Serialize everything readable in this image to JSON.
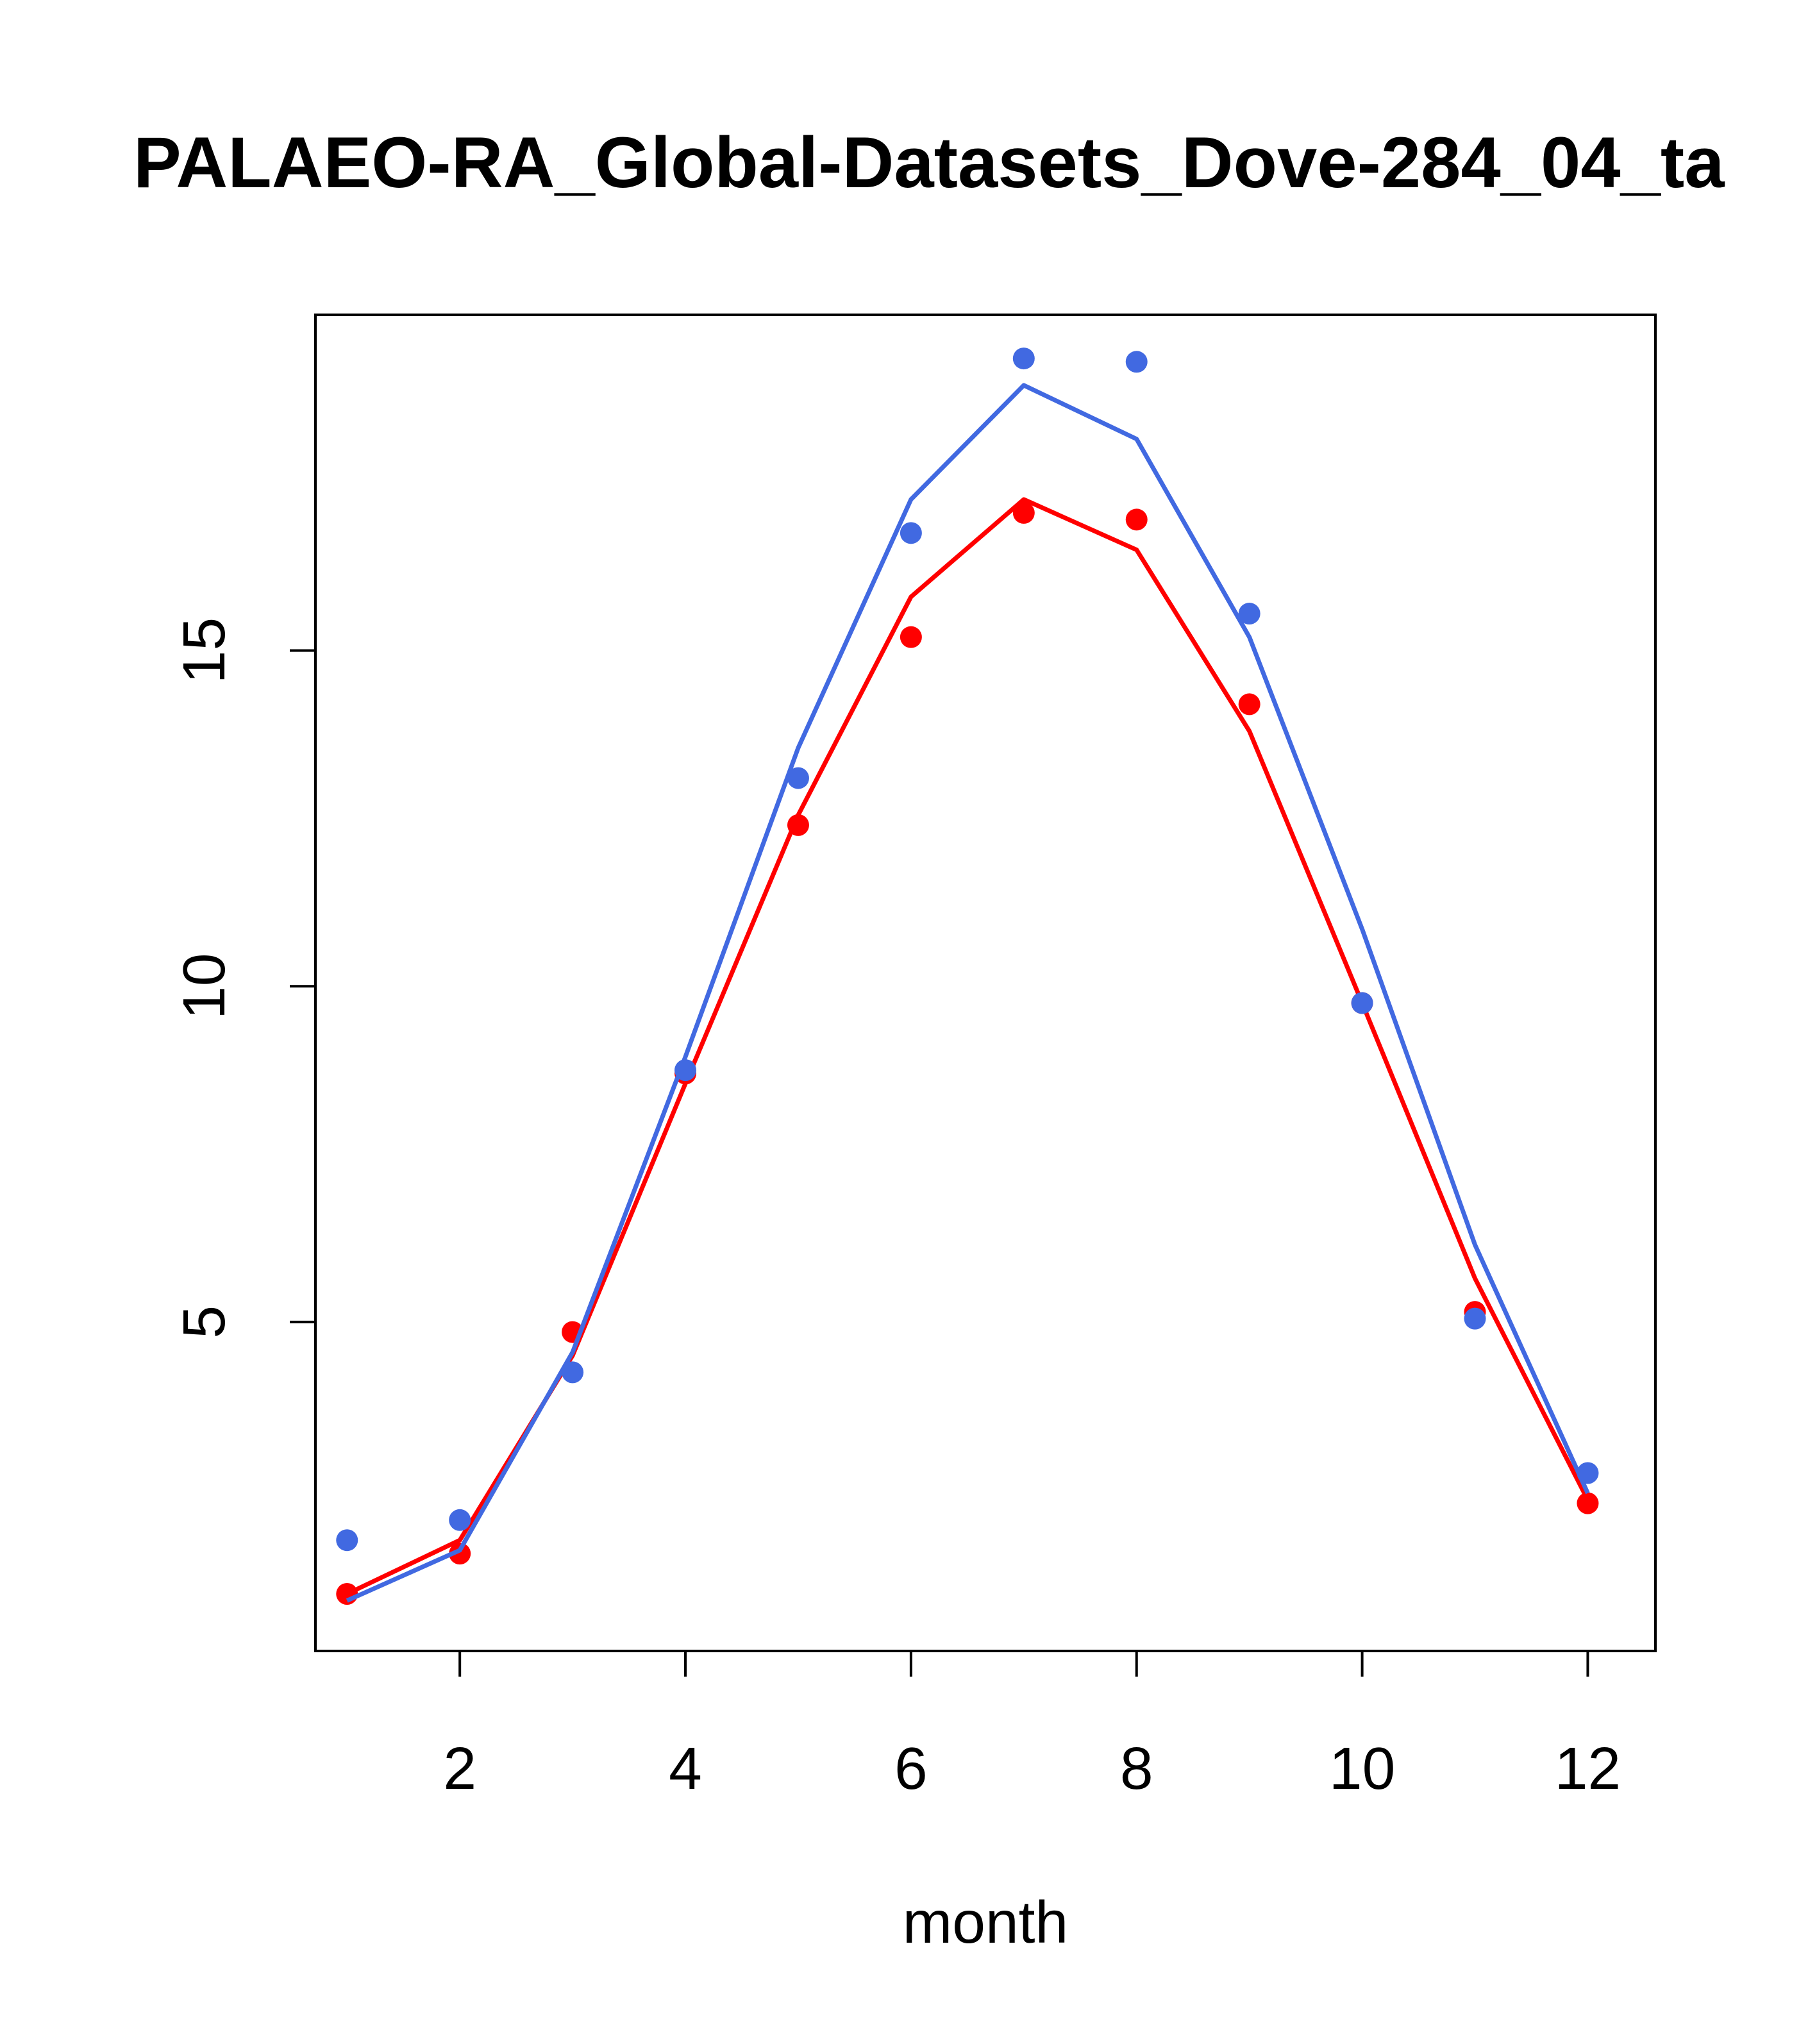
{
  "chart_data": {
    "type": "line",
    "title": "PALAEO-RA_Global-Datasets_Dove-284_04_ta",
    "xlabel": "month",
    "ylabel": "",
    "x": [
      1,
      2,
      3,
      4,
      5,
      6,
      7,
      8,
      9,
      10,
      11,
      12
    ],
    "xlim": [
      0.72,
      12.6
    ],
    "ylim": [
      0.1,
      20.0
    ],
    "xticks": [
      2,
      4,
      6,
      8,
      10,
      12
    ],
    "yticks": [
      5,
      10,
      15
    ],
    "xtick_labels": [
      "2",
      "4",
      "6",
      "8",
      "10",
      "12"
    ],
    "ytick_labels": [
      "5",
      "10",
      "15"
    ],
    "grid": false,
    "colors": {
      "red_series": "#ff0000",
      "blue_series": "#4169e1",
      "axis": "#000000"
    },
    "series": [
      {
        "color": "#ff0000",
        "line": [
          0.95,
          1.75,
          4.5,
          8.55,
          12.55,
          15.8,
          17.25,
          16.5,
          13.8,
          9.75,
          5.65,
          2.35
        ],
        "points": [
          0.95,
          1.55,
          4.85,
          8.7,
          12.4,
          15.2,
          17.05,
          16.95,
          14.2,
          9.75,
          5.15,
          2.3
        ]
      },
      {
        "color": "#4169e1",
        "line": [
          0.85,
          1.6,
          4.55,
          8.95,
          13.55,
          17.25,
          18.95,
          18.15,
          15.2,
          10.85,
          6.15,
          2.45
        ],
        "points": [
          1.75,
          2.05,
          4.25,
          8.75,
          13.1,
          16.75,
          19.35,
          19.3,
          15.55,
          9.75,
          5.05,
          2.75
        ]
      }
    ]
  }
}
